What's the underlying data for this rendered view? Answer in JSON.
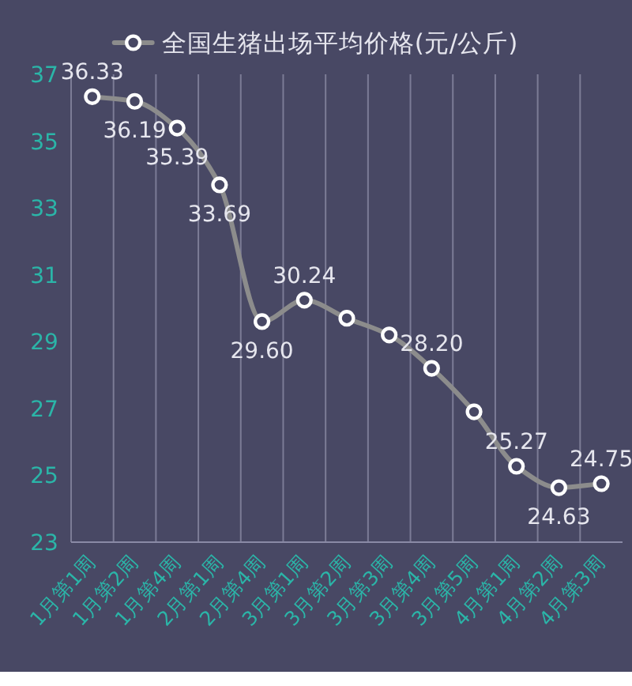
{
  "chart_data": {
    "type": "line",
    "categories": [
      "1月第1周",
      "1月第2周",
      "1月第4周",
      "2月第1周",
      "2月第4周",
      "3月第1周",
      "3月第2周",
      "3月第3周",
      "3月第4周",
      "3月第5周",
      "4月第1周",
      "4月第2周",
      "4月第3周"
    ],
    "series": [
      {
        "name": "全国生猪出场平均价格(元/公斤)",
        "color": "#8c8c8c",
        "values": [
          36.33,
          36.19,
          35.39,
          33.69,
          29.6,
          30.24,
          29.7,
          29.2,
          28.2,
          26.9,
          25.27,
          24.63,
          24.75
        ],
        "value_labels": [
          "36.33",
          "36.19",
          "35.39",
          "33.69",
          "29.60",
          "30.24",
          null,
          null,
          "28.20",
          null,
          "25.27",
          "24.63",
          "24.75"
        ]
      }
    ],
    "ylim": [
      23,
      37
    ],
    "yticks": [
      23,
      25,
      27,
      29,
      31,
      33,
      35,
      37
    ],
    "grid": "x",
    "legend": "top",
    "marker": "circle",
    "line_style": "solid"
  }
}
